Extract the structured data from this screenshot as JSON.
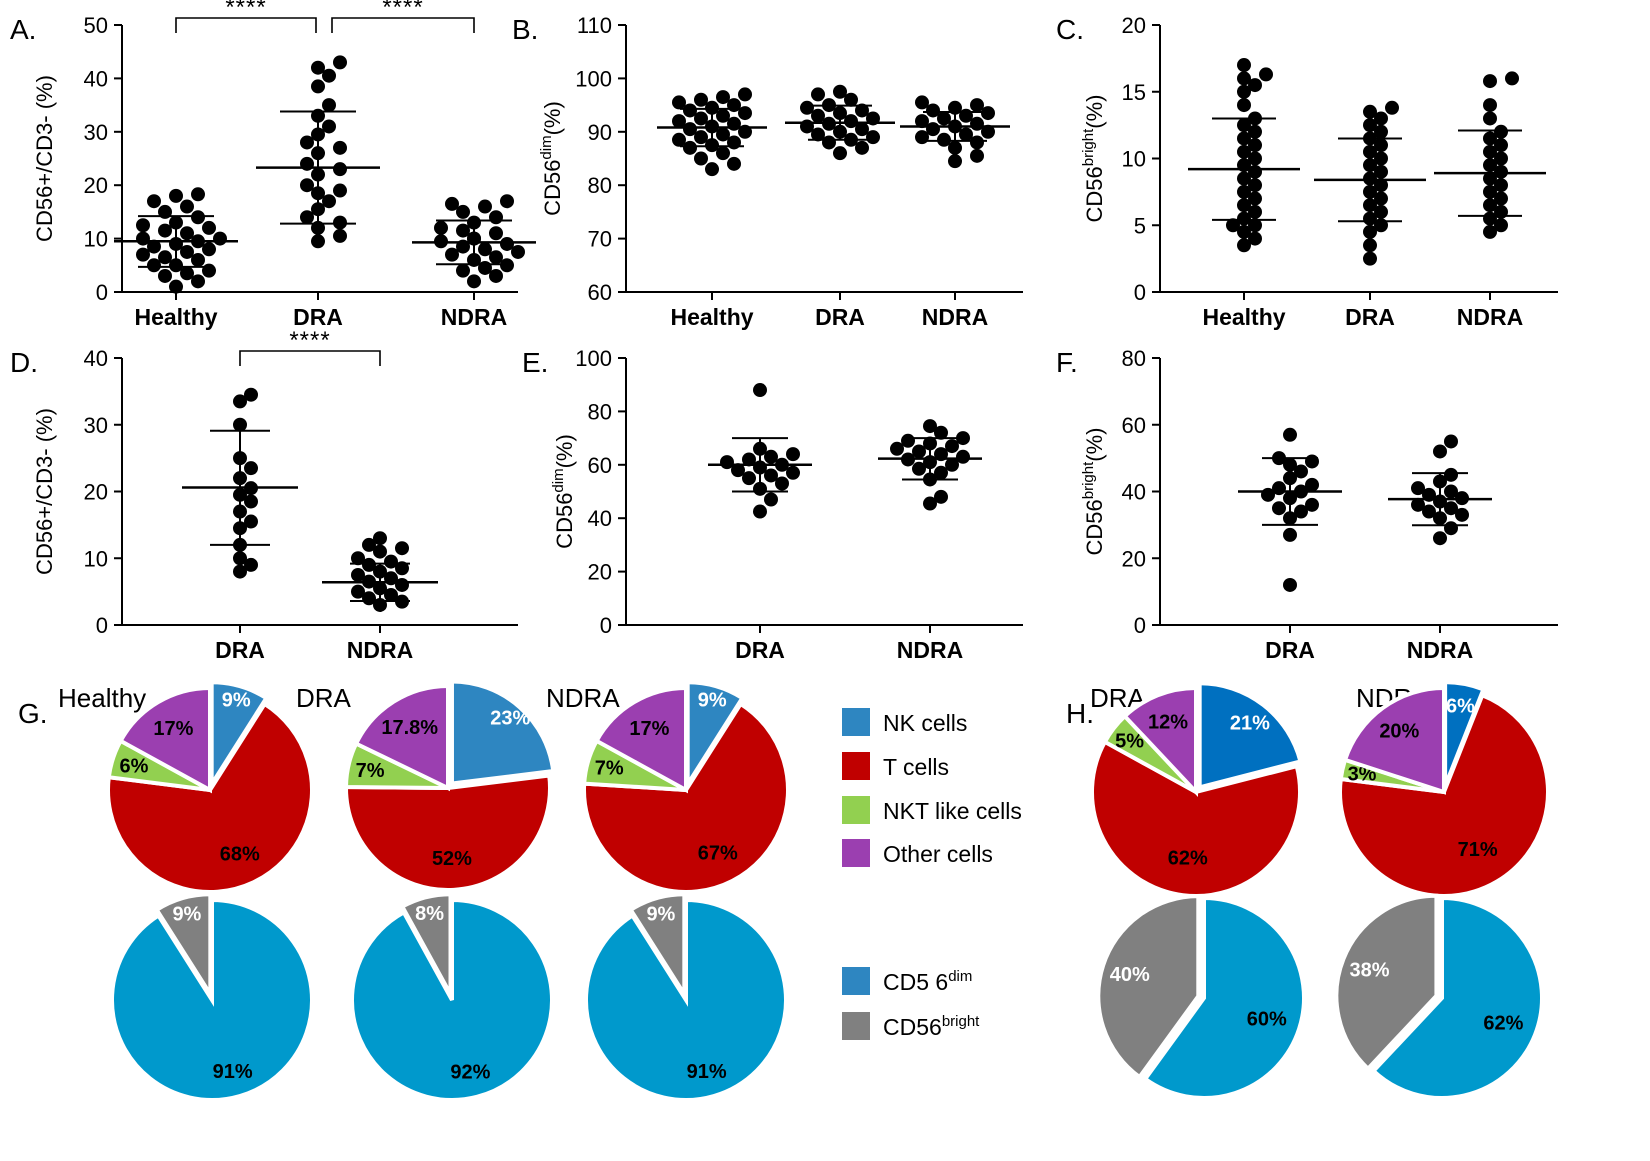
{
  "chart_data": [
    {
      "id": "A",
      "type": "scatter",
      "panel_label": "A.",
      "ylabel": "CD56+/CD3- (%)",
      "ylim": [
        0,
        50
      ],
      "yticks": [
        0,
        10,
        20,
        30,
        40,
        50
      ],
      "categories": [
        "Healthy",
        "DRA",
        "NDRA"
      ],
      "mean": [
        9.5,
        23.3,
        9.3
      ],
      "sd_low": [
        4.7,
        12.8,
        5.2
      ],
      "sd_high": [
        14.2,
        33.8,
        13.4
      ],
      "points": [
        [
          1,
          2,
          3,
          3.5,
          4,
          5,
          5,
          6,
          6.5,
          7,
          7.5,
          8,
          8.5,
          9,
          9.5,
          10,
          10,
          11,
          11.5,
          12,
          12.5,
          13,
          14,
          15,
          16,
          17,
          18,
          18.3
        ],
        [
          9.5,
          10.5,
          12,
          13,
          14,
          15.5,
          17,
          18.5,
          19,
          20,
          22,
          23,
          24,
          26,
          27,
          28,
          29.5,
          31,
          33,
          35,
          38.5,
          40.5,
          42,
          43
        ],
        [
          2,
          3,
          4,
          4.5,
          5,
          6,
          6.5,
          7,
          7.5,
          8,
          8.5,
          9,
          9.5,
          10,
          10,
          11,
          11.5,
          12,
          13,
          14,
          15,
          16,
          16.5,
          17
        ]
      ],
      "significance": [
        {
          "from": "Healthy",
          "to": "DRA",
          "label": "****"
        },
        {
          "from": "DRA",
          "to": "NDRA",
          "label": "****"
        }
      ]
    },
    {
      "id": "B",
      "type": "scatter",
      "panel_label": "B.",
      "ylabel_main": "CD56",
      "ylabel_sup": "dim",
      "ylabel_tail": "(%)",
      "ylim": [
        60,
        110
      ],
      "yticks": [
        60,
        70,
        80,
        90,
        100,
        110
      ],
      "categories": [
        "Healthy",
        "DRA",
        "NDRA"
      ],
      "mean": [
        90.8,
        91.7,
        91.0
      ],
      "sd_low": [
        87.3,
        88.5,
        88.3
      ],
      "sd_high": [
        94.3,
        94.9,
        93.7
      ],
      "points": [
        [
          83,
          84,
          85,
          86,
          87,
          87.5,
          88,
          88.5,
          89,
          89.5,
          90,
          90.5,
          91,
          91.5,
          92,
          92.5,
          93,
          93.5,
          94,
          94.5,
          95,
          95.5,
          96,
          96.5,
          97
        ],
        [
          86,
          87,
          88,
          88.5,
          89,
          89.5,
          90,
          90.5,
          91,
          91.5,
          92,
          92.5,
          93,
          93.5,
          94,
          94.5,
          95,
          96,
          97,
          97.5
        ],
        [
          84.5,
          85.5,
          87,
          88,
          88.5,
          89,
          89.5,
          90,
          90.5,
          91,
          91.5,
          92,
          92.5,
          93,
          93.5,
          94,
          94.5,
          95,
          95.5
        ]
      ]
    },
    {
      "id": "C",
      "type": "scatter",
      "panel_label": "C.",
      "ylabel_main": "CD56",
      "ylabel_sup": "bright",
      "ylabel_tail": "(%)",
      "ylim": [
        0,
        20
      ],
      "yticks": [
        0,
        5,
        10,
        15,
        20
      ],
      "categories": [
        "Healthy",
        "DRA",
        "NDRA"
      ],
      "mean": [
        9.2,
        8.4,
        8.9
      ],
      "sd_low": [
        5.4,
        5.3,
        5.7
      ],
      "sd_high": [
        13.0,
        11.5,
        12.1
      ],
      "points": [
        [
          3.5,
          4,
          4.5,
          5,
          5,
          5.5,
          6,
          6.5,
          7,
          7.5,
          8,
          8.5,
          9,
          9.5,
          10,
          10.5,
          11,
          11.5,
          12,
          12.5,
          13,
          14,
          15,
          15.5,
          16,
          16.3,
          17
        ],
        [
          2.5,
          3.5,
          4.5,
          5,
          5.5,
          6,
          6.5,
          7,
          7.5,
          8,
          8.5,
          9,
          9.5,
          10,
          10.5,
          11,
          11.5,
          12,
          12.5,
          13,
          13.5,
          13.8
        ],
        [
          4.5,
          5,
          5.5,
          6,
          6.5,
          7,
          7.5,
          8,
          8.5,
          9,
          9.5,
          10,
          10.5,
          11,
          11.5,
          12,
          13,
          14,
          15.8,
          16
        ]
      ]
    },
    {
      "id": "D",
      "type": "scatter",
      "panel_label": "D.",
      "ylabel": "CD56+/CD3- (%)",
      "ylim": [
        0,
        40
      ],
      "yticks": [
        0,
        10,
        20,
        30,
        40
      ],
      "categories": [
        "DRA",
        "NDRA"
      ],
      "mean": [
        20.6,
        6.4
      ],
      "sd_low": [
        12.0,
        3.6
      ],
      "sd_high": [
        29.1,
        9.2
      ],
      "points": [
        [
          8,
          9,
          10,
          12,
          14.5,
          15.5,
          17,
          18.5,
          19.5,
          20.5,
          22,
          23.5,
          25,
          30,
          33.5,
          34.5
        ],
        [
          3,
          3.5,
          4,
          4.5,
          5,
          5.5,
          6,
          6.5,
          7,
          7.5,
          8,
          8.5,
          9,
          9.5,
          10,
          11,
          11.5,
          12,
          13
        ]
      ],
      "significance": [
        {
          "from": "DRA",
          "to": "NDRA",
          "label": "****"
        }
      ]
    },
    {
      "id": "E",
      "type": "scatter",
      "panel_label": "E.",
      "ylabel_main": "CD56",
      "ylabel_sup": "dim",
      "ylabel_tail": "(%)",
      "ylim": [
        0,
        100
      ],
      "yticks": [
        0,
        20,
        40,
        60,
        80,
        100
      ],
      "categories": [
        "DRA",
        "NDRA"
      ],
      "mean": [
        60.0,
        62.3
      ],
      "sd_low": [
        50.0,
        54.5
      ],
      "sd_high": [
        70.0,
        70.0
      ],
      "points": [
        [
          42.5,
          47,
          51,
          53,
          55,
          56,
          57,
          58,
          59,
          60,
          61,
          62,
          63,
          64,
          66,
          88
        ],
        [
          45.5,
          48,
          54.5,
          57,
          58.5,
          60,
          61,
          62,
          63,
          64,
          65,
          66,
          67,
          68,
          69,
          70,
          72,
          74.5
        ]
      ]
    },
    {
      "id": "F",
      "type": "scatter",
      "panel_label": "F.",
      "ylabel_main": "CD56",
      "ylabel_sup": "bright",
      "ylabel_tail": "(%)",
      "ylim": [
        0,
        80
      ],
      "yticks": [
        0,
        20,
        40,
        60,
        80
      ],
      "categories": [
        "DRA",
        "NDRA"
      ],
      "mean": [
        40.0,
        37.7
      ],
      "sd_low": [
        30.0,
        29.9
      ],
      "sd_high": [
        50.0,
        45.5
      ],
      "points": [
        [
          12,
          27,
          32,
          34,
          35,
          36,
          38,
          39,
          40,
          41,
          42,
          44,
          46,
          48,
          49,
          50,
          57
        ],
        [
          26,
          29,
          32,
          33,
          34,
          35,
          36,
          37,
          38,
          39,
          40,
          41,
          43,
          45,
          52,
          55
        ]
      ]
    },
    {
      "id": "G",
      "type": "pie",
      "panel_label": "G.",
      "row1_legend": [
        "NK cells",
        "T cells",
        "NKT like cells",
        "Other cells"
      ],
      "row1_colors": [
        "#2e86c1",
        "#c00000",
        "#92d050",
        "#9b3fb0"
      ],
      "row2_legend": [
        {
          "main": "CD5 6",
          "sup": "dim"
        },
        {
          "main": "CD56",
          "sup": "bright"
        }
      ],
      "row2_colors": [
        "#0099cc",
        "#808080"
      ],
      "pies_row1": [
        {
          "title": "Healthy",
          "labels": [
            "9%",
            "68%",
            "6%",
            "17%"
          ],
          "values": [
            9,
            68,
            6,
            17
          ],
          "explode": [
            0
          ]
        },
        {
          "title": "DRA",
          "labels": [
            "23%",
            "52%",
            "7%",
            "17.8%"
          ],
          "values": [
            23,
            52,
            7,
            17.8
          ],
          "explode": [
            0
          ]
        },
        {
          "title": "NDRA",
          "labels": [
            "9%",
            "67%",
            "7%",
            "17%"
          ],
          "values": [
            9,
            67,
            7,
            17
          ],
          "explode": [
            0
          ]
        }
      ],
      "pies_row2": [
        {
          "labels": [
            "91%",
            "9%"
          ],
          "values": [
            91,
            9
          ],
          "explode": [
            1
          ]
        },
        {
          "labels": [
            "92%",
            "8%"
          ],
          "values": [
            92,
            8
          ],
          "explode": [
            1
          ]
        },
        {
          "labels": [
            "91%",
            "9%"
          ],
          "values": [
            91,
            9
          ],
          "explode": [
            1
          ]
        }
      ]
    },
    {
      "id": "H",
      "type": "pie",
      "panel_label": "H.",
      "row1_colors": [
        "#0070c0",
        "#c00000",
        "#92d050",
        "#9b3fb0"
      ],
      "row2_colors": [
        "#0099cc",
        "#808080"
      ],
      "pies_row1": [
        {
          "title": "DRA",
          "labels": [
            "21%",
            "62%",
            "5%",
            "12%"
          ],
          "values": [
            21,
            62,
            5,
            12
          ],
          "explode": [
            0
          ]
        },
        {
          "title": "NDRA",
          "labels": [
            "6%",
            "71%",
            "3%",
            "20%"
          ],
          "values": [
            6,
            71,
            3,
            20
          ],
          "explode": [
            0
          ]
        }
      ],
      "pies_row2": [
        {
          "labels": [
            "60%",
            "40%"
          ],
          "values": [
            60,
            40
          ],
          "explode": [
            1
          ]
        },
        {
          "labels": [
            "62%",
            "38%"
          ],
          "values": [
            62,
            38
          ],
          "explode": [
            1
          ]
        }
      ]
    }
  ]
}
